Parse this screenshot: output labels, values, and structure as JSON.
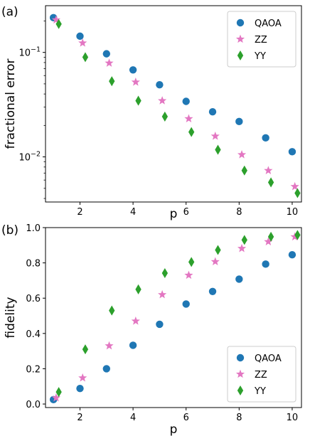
{
  "chart_data": [
    {
      "type": "scatter",
      "panel_label": "(a)",
      "title": "",
      "xlabel": "p",
      "ylabel": "fractional error",
      "yscale": "log",
      "xlim": [
        0.7,
        10.35
      ],
      "ylim": [
        0.0037,
        0.28
      ],
      "x_ticks": [
        2,
        4,
        6,
        8,
        10
      ],
      "y_ticks": [
        {
          "value": 0.1,
          "label": "10",
          "exp": "−1"
        },
        {
          "value": 0.01,
          "label": "10",
          "exp": "−2"
        }
      ],
      "grid": false,
      "legend_position": "top-right",
      "series": [
        {
          "name": "QAOA",
          "marker": "circle",
          "color": "#1f77b4",
          "x": [
            1,
            2,
            3,
            4,
            5,
            6,
            7,
            8,
            9,
            10
          ],
          "y": [
            0.215,
            0.143,
            0.097,
            0.068,
            0.049,
            0.034,
            0.027,
            0.0218,
            0.0152,
            0.0112
          ]
        },
        {
          "name": "ZZ",
          "marker": "star",
          "color": "#e377c2",
          "x": [
            1.1,
            2.1,
            3.1,
            4.1,
            5.1,
            6.1,
            7.1,
            8.1,
            9.1,
            10.1
          ],
          "y": [
            0.205,
            0.123,
            0.079,
            0.052,
            0.0345,
            0.0232,
            0.0158,
            0.0105,
            0.0074,
            0.0052
          ]
        },
        {
          "name": "YY",
          "marker": "diamond",
          "color": "#2ca02c",
          "x": [
            1.2,
            2.2,
            3.2,
            4.2,
            5.2,
            6.2,
            7.2,
            8.2,
            9.2,
            10.2
          ],
          "y": [
            0.187,
            0.09,
            0.053,
            0.0345,
            0.0243,
            0.0173,
            0.0117,
            0.0074,
            0.0057,
            0.0045
          ]
        }
      ]
    },
    {
      "type": "scatter",
      "panel_label": "(b)",
      "title": "",
      "xlabel": "p",
      "ylabel": "fidelity",
      "yscale": "linear",
      "xlim": [
        0.7,
        10.35
      ],
      "ylim": [
        -0.02,
        1.0
      ],
      "x_ticks": [
        2,
        4,
        6,
        8,
        10
      ],
      "y_ticks": [
        {
          "value": 0.0,
          "label": "0.0"
        },
        {
          "value": 0.2,
          "label": "0.2"
        },
        {
          "value": 0.4,
          "label": "0.4"
        },
        {
          "value": 0.6,
          "label": "0.6"
        },
        {
          "value": 0.8,
          "label": "0.8"
        },
        {
          "value": 1.0,
          "label": "1.0"
        }
      ],
      "grid": false,
      "legend_position": "bottom-right",
      "series": [
        {
          "name": "QAOA",
          "marker": "circle",
          "color": "#1f77b4",
          "x": [
            1,
            2,
            3,
            4,
            5,
            6,
            7,
            8,
            9,
            10
          ],
          "y": [
            0.025,
            0.088,
            0.2,
            0.333,
            0.452,
            0.567,
            0.638,
            0.708,
            0.793,
            0.846
          ]
        },
        {
          "name": "ZZ",
          "marker": "star",
          "color": "#e377c2",
          "x": [
            1.1,
            2.1,
            3.1,
            4.1,
            5.1,
            6.1,
            7.1,
            8.1,
            9.1,
            10.1
          ],
          "y": [
            0.035,
            0.148,
            0.33,
            0.47,
            0.62,
            0.73,
            0.807,
            0.882,
            0.92,
            0.948
          ]
        },
        {
          "name": "YY",
          "marker": "diamond",
          "color": "#2ca02c",
          "x": [
            1.2,
            2.2,
            3.2,
            4.2,
            5.2,
            6.2,
            7.2,
            8.2,
            9.2,
            10.2
          ],
          "y": [
            0.068,
            0.31,
            0.53,
            0.65,
            0.742,
            0.805,
            0.873,
            0.93,
            0.948,
            0.958
          ]
        }
      ]
    }
  ]
}
